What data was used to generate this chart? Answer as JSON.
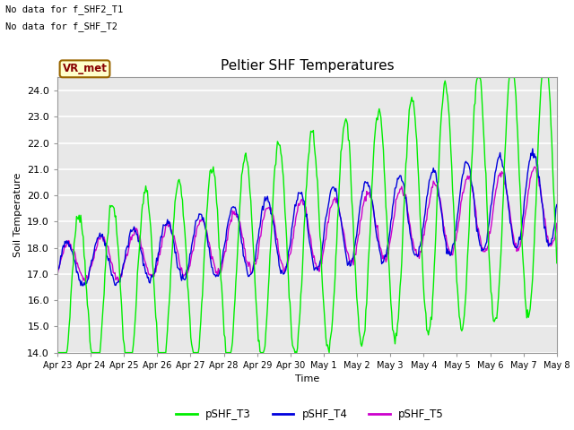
{
  "title": "Peltier SHF Temperatures",
  "ylabel": "Soil Temperature",
  "xlabel": "Time",
  "text_no_data_1": "No data for f_SHF2_T1",
  "text_no_data_2": "No data for f_SHF_T2",
  "vr_met_label": "VR_met",
  "ylim": [
    14.0,
    24.5
  ],
  "yticks": [
    14.0,
    15.0,
    16.0,
    17.0,
    18.0,
    19.0,
    20.0,
    21.0,
    22.0,
    23.0,
    24.0
  ],
  "fig_bg_color": "#ffffff",
  "plot_bg_color": "#e8e8e8",
  "line_colors": {
    "pSHF_T3": "#00ee00",
    "pSHF_T4": "#0000dd",
    "pSHF_T5": "#cc00cc"
  },
  "legend_labels": [
    "pSHF_T3",
    "pSHF_T4",
    "pSHF_T5"
  ],
  "xtick_labels": [
    "Apr 23",
    "Apr 24",
    "Apr 25",
    "Apr 26",
    "Apr 27",
    "Apr 28",
    "Apr 29",
    "Apr 30",
    "May 1",
    "May 2",
    "May 3",
    "May 4",
    "May 5",
    "May 6",
    "May 7",
    "May 8"
  ],
  "num_points": 600
}
